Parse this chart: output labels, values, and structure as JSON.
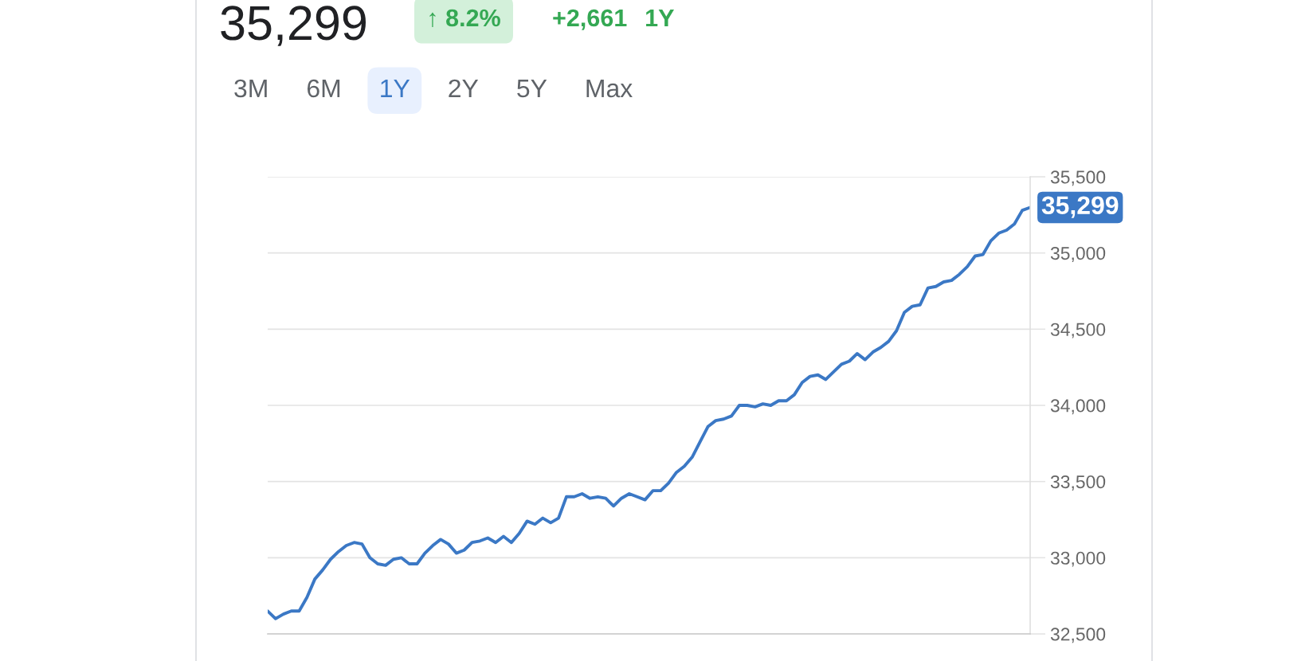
{
  "chart_data": {
    "type": "line",
    "title": "35,299",
    "annotations": [
      "↑ 8.2%",
      "+2,661",
      "1Y",
      "3M",
      "6M",
      "1Y",
      "2Y",
      "5Y",
      "Max"
    ],
    "categories": [
      null,
      null,
      null,
      null,
      null,
      null,
      null,
      null,
      null,
      null,
      null,
      null,
      null,
      null,
      null,
      null,
      null,
      null,
      null,
      null,
      null,
      null,
      null,
      null,
      null,
      null,
      null,
      null,
      null,
      null,
      null,
      null,
      null,
      null,
      null,
      null,
      null,
      null,
      null,
      null,
      null,
      null,
      null,
      null,
      null,
      null,
      null,
      null,
      null,
      null,
      null,
      null,
      null,
      null,
      null,
      null,
      null,
      null,
      null,
      null,
      null,
      null,
      null,
      null,
      null,
      null,
      null,
      null,
      null,
      null,
      null,
      null,
      null,
      null,
      null,
      null,
      null,
      null,
      null,
      null,
      null,
      null,
      null,
      null,
      null,
      null,
      null,
      null,
      null,
      null,
      null,
      null,
      null,
      null,
      null,
      null,
      null,
      null
    ],
    "series": [
      {
        "color": "#3b78c5",
        "values": [
          32650,
          32600,
          32630,
          32650,
          32650,
          32740,
          32860,
          32920,
          32990,
          33040,
          33080,
          33100,
          33090,
          33000,
          32960,
          32950,
          32990,
          33000,
          32960,
          32960,
          33030,
          33080,
          33120,
          33090,
          33030,
          33050,
          33100,
          33110,
          33130,
          33100,
          33140,
          33100,
          33160,
          33240,
          33220,
          33260,
          33230,
          33260,
          33400,
          33400,
          33420,
          33390,
          33400,
          33390,
          33340,
          33390,
          33420,
          33400,
          33380,
          33440,
          33440,
          33490,
          33560,
          33600,
          33660,
          33760,
          33860,
          33900,
          33910,
          33930,
          34000,
          34000,
          33990,
          34010,
          34000,
          34030,
          34030,
          34070,
          34150,
          34190,
          34200,
          34170,
          34220,
          34270,
          34290,
          34340,
          34300,
          34350,
          34380,
          34420,
          34490,
          34610,
          34650,
          34660,
          34770,
          34780,
          34810,
          34820,
          34860,
          34910,
          34980,
          34990,
          35080,
          35130,
          35150,
          35190,
          35280,
          35299
        ],
        "value_labels": [
          null,
          null,
          null,
          null,
          null,
          null,
          null,
          null,
          null,
          null,
          null,
          null,
          null,
          null,
          null,
          null,
          null,
          null,
          null,
          null,
          null,
          null,
          null,
          null,
          null,
          null,
          null,
          null,
          null,
          null,
          null,
          null,
          null,
          null,
          null,
          null,
          null,
          null,
          null,
          null,
          null,
          null,
          null,
          null,
          null,
          null,
          null,
          null,
          null,
          null,
          null,
          null,
          null,
          null,
          null,
          null,
          null,
          null,
          null,
          null,
          null,
          null,
          null,
          null,
          null,
          null,
          null,
          null,
          null,
          null,
          null,
          null,
          null,
          null,
          null,
          null,
          null,
          null,
          null,
          null,
          null,
          null,
          null,
          null,
          null,
          null,
          null,
          null,
          null,
          null,
          null,
          null,
          null,
          null,
          null,
          null,
          null,
          "35,299"
        ]
      }
    ],
    "ylim": [
      32500,
      35500
    ],
    "yticks": [
      {
        "value": 32500,
        "label": "32,500"
      },
      {
        "value": 33000,
        "label": "33,000"
      },
      {
        "value": 33500,
        "label": "33,500"
      },
      {
        "value": 34000,
        "label": "34,000"
      },
      {
        "value": 34500,
        "label": "34,500"
      },
      {
        "value": 35000,
        "label": "35,000"
      },
      {
        "value": 35500,
        "label": "35,500"
      }
    ],
    "grid": "y",
    "tick_labels": "y"
  }
}
